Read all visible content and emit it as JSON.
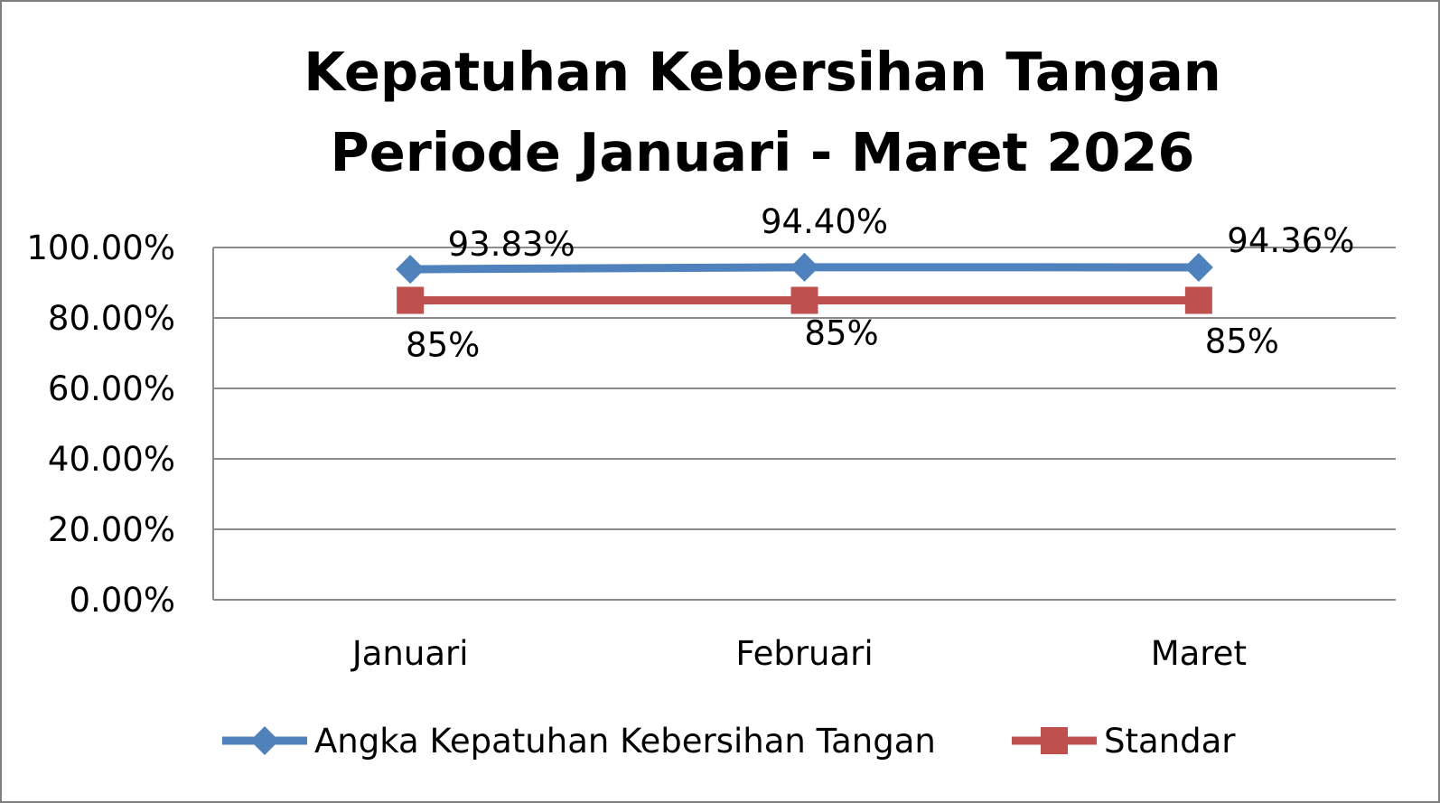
{
  "chart_data": {
    "type": "line",
    "title_lines": [
      "Kepatuhan Kebersihan Tangan",
      "Periode Januari - Maret 2026"
    ],
    "categories": [
      "Januari",
      "Februari",
      "Maret"
    ],
    "ylim": [
      0,
      1
    ],
    "yticks": [
      0,
      0.2,
      0.4,
      0.6,
      0.8,
      1.0
    ],
    "ytick_labels": [
      "0.00%",
      "20.00%",
      "40.00%",
      "60.00%",
      "80.00%",
      "100.00%"
    ],
    "grid": true,
    "legend_position": "bottom",
    "series": [
      {
        "name": "Angka Kepatuhan Kebersihan Tangan",
        "values": [
          0.9383,
          0.944,
          0.9436
        ],
        "data_labels": [
          "93.83%",
          "94.40%",
          "94.36%"
        ],
        "color": "#4f81bd",
        "marker": "diamond",
        "label_position": "above"
      },
      {
        "name": "Standar",
        "values": [
          0.85,
          0.85,
          0.85
        ],
        "data_labels": [
          "85%",
          "85%",
          "85%"
        ],
        "color": "#c0504d",
        "marker": "square",
        "label_position": "below"
      }
    ]
  }
}
